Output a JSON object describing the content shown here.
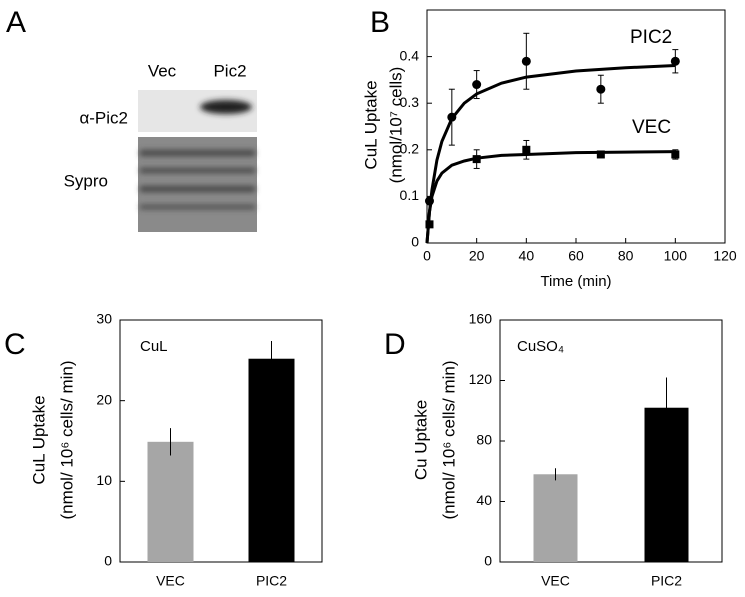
{
  "blot": {
    "label": "A",
    "lanes": [
      "Vec",
      "Pic2"
    ],
    "rows": [
      "α-Pic2",
      "Sypro"
    ]
  },
  "chart_data": [
    {
      "type": "scatter",
      "label": "B",
      "x_label": "Time (min)",
      "y_label": [
        "CuL Uptake",
        "(nmol/10⁷ cells)"
      ],
      "xlim": [
        0,
        120
      ],
      "xticks": [
        0,
        20,
        40,
        60,
        80,
        100,
        120
      ],
      "ylim": [
        0,
        0.5
      ],
      "yticks": [
        0,
        0.1,
        0.2,
        0.3,
        0.4
      ],
      "series": [
        {
          "name": "PIC2",
          "color": "#000000",
          "marker": "circle",
          "x": [
            1,
            10,
            20,
            40,
            70,
            100
          ],
          "values": [
            0.09,
            0.27,
            0.34,
            0.39,
            0.33,
            0.39
          ],
          "errors": [
            0,
            0.06,
            0.03,
            0.06,
            0.03,
            0.025
          ],
          "fit": {
            "x": [
              0,
              1,
              2,
              4,
              6,
              10,
              15,
              20,
              30,
              40,
              60,
              80,
              100
            ],
            "values": [
              0,
              0.067,
              0.114,
              0.178,
              0.218,
              0.267,
              0.3,
              0.32,
              0.343,
              0.356,
              0.369,
              0.376,
              0.381
            ]
          }
        },
        {
          "name": "VEC",
          "color": "#000000",
          "marker": "square",
          "x": [
            1,
            20,
            40,
            70,
            100
          ],
          "values": [
            0.04,
            0.18,
            0.2,
            0.19,
            0.19
          ],
          "errors": [
            0,
            0.02,
            0.02,
            0.005,
            0.01
          ],
          "fit": {
            "x": [
              0,
              1,
              2,
              4,
              6,
              10,
              15,
              20,
              30,
              40,
              60,
              80,
              100
            ],
            "values": [
              0,
              0.067,
              0.1,
              0.133,
              0.15,
              0.167,
              0.176,
              0.182,
              0.188,
              0.19,
              0.194,
              0.195,
              0.196
            ]
          }
        }
      ]
    },
    {
      "type": "bar",
      "label": "C",
      "annotation": "CuL",
      "y_label": [
        "CuL Uptake",
        "(nmol/ 10⁶ cells/ min)"
      ],
      "categories": [
        "VEC",
        "PIC2"
      ],
      "values": [
        14.9,
        25.2
      ],
      "errors": [
        1.7,
        2.2
      ],
      "colors": [
        "#a6a6a6",
        "#000000"
      ],
      "ylim": [
        0,
        30
      ],
      "yticks": [
        0,
        10,
        20,
        30
      ]
    },
    {
      "type": "bar",
      "label": "D",
      "annotation": "CuSO₄",
      "y_label": [
        "Cu Uptake",
        "(nmol/ 10⁶ cells/ min)"
      ],
      "categories": [
        "VEC",
        "PIC2"
      ],
      "values": [
        58,
        102
      ],
      "errors": [
        4,
        20
      ],
      "colors": [
        "#a6a6a6",
        "#000000"
      ],
      "ylim": [
        0,
        160
      ],
      "yticks": [
        0,
        40,
        80,
        120,
        160
      ]
    }
  ]
}
